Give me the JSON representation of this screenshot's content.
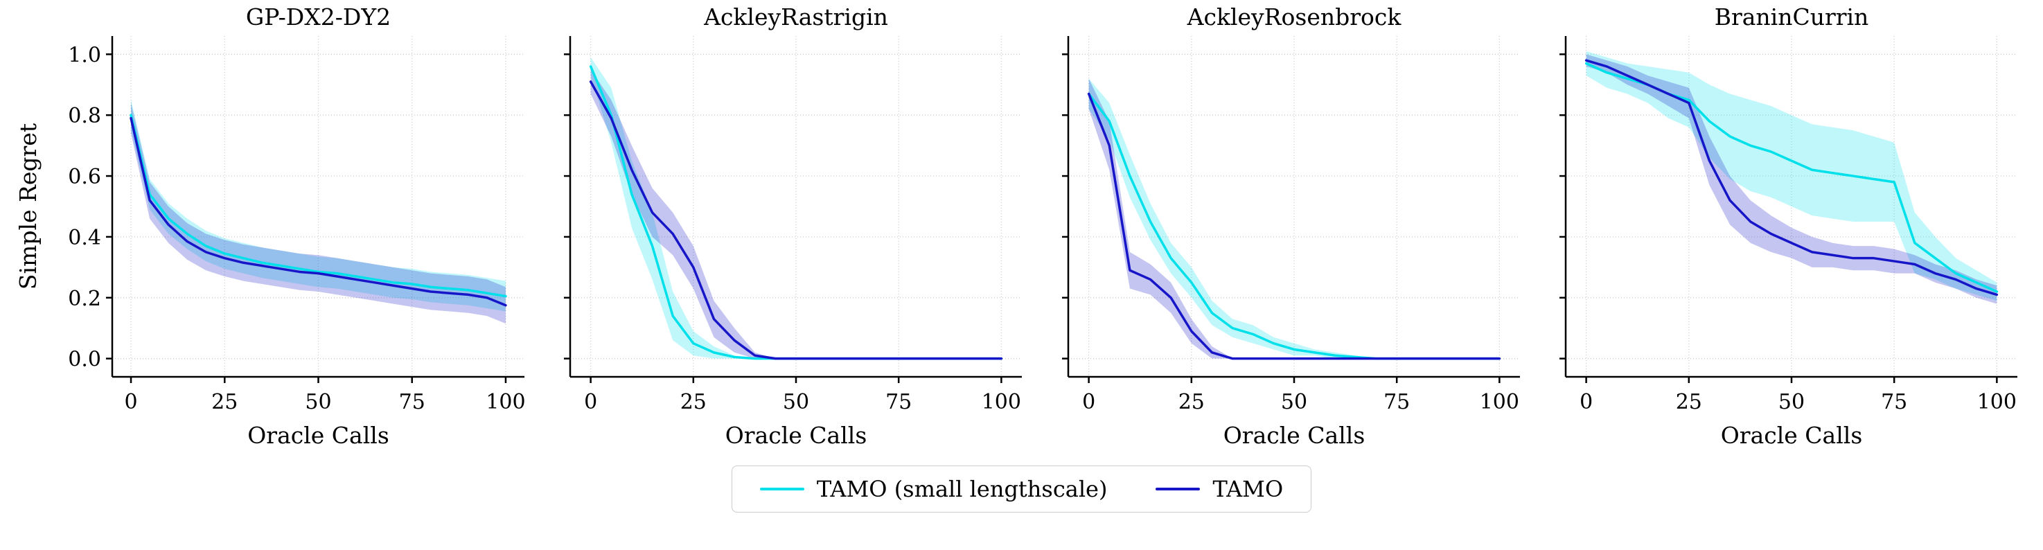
{
  "figure": {
    "legend_items": [
      {
        "label": "TAMO (small lengthscale)",
        "color": "#00E0EA"
      },
      {
        "label": "TAMO",
        "color": "#1616C8"
      }
    ]
  },
  "chart_data": {
    "type": "line",
    "xlabel": "Oracle Calls",
    "ylabel": "Simple Regret",
    "grid": true,
    "legend_position": "bottom-center",
    "x": [
      0,
      5,
      10,
      15,
      20,
      25,
      30,
      35,
      40,
      45,
      50,
      55,
      60,
      65,
      70,
      75,
      80,
      85,
      90,
      95,
      100
    ],
    "xticks": [
      0,
      25,
      50,
      75,
      100
    ],
    "yticks": [
      0.0,
      0.2,
      0.4,
      0.6,
      0.8,
      1.0
    ],
    "xlim": [
      -5,
      105
    ],
    "ylim": [
      -0.06,
      1.06
    ],
    "panels": [
      {
        "title": "GP-DX2-DY2",
        "series": [
          {
            "name": "TAMO (small lengthscale)",
            "color": "#00E0EA",
            "mean": [
              0.8,
              0.54,
              0.46,
              0.41,
              0.37,
              0.345,
              0.33,
              0.315,
              0.305,
              0.295,
              0.285,
              0.28,
              0.27,
              0.26,
              0.25,
              0.245,
              0.235,
              0.23,
              0.225,
              0.215,
              0.205
            ],
            "band": [
              0.05,
              0.05,
              0.05,
              0.05,
              0.05,
              0.05,
              0.05,
              0.05,
              0.05,
              0.05,
              0.05,
              0.05,
              0.05,
              0.05,
              0.05,
              0.05,
              0.05,
              0.05,
              0.05,
              0.05,
              0.05
            ]
          },
          {
            "name": "TAMO",
            "color": "#1616C8",
            "mean": [
              0.79,
              0.52,
              0.44,
              0.385,
              0.35,
              0.33,
              0.315,
              0.305,
              0.295,
              0.285,
              0.28,
              0.27,
              0.26,
              0.25,
              0.24,
              0.23,
              0.22,
              0.215,
              0.21,
              0.2,
              0.175
            ],
            "band": [
              0.05,
              0.06,
              0.06,
              0.06,
              0.06,
              0.06,
              0.06,
              0.06,
              0.06,
              0.06,
              0.06,
              0.06,
              0.06,
              0.06,
              0.06,
              0.06,
              0.06,
              0.06,
              0.06,
              0.06,
              0.06
            ]
          }
        ]
      },
      {
        "title": "AckleyRastrigin",
        "series": [
          {
            "name": "TAMO (small lengthscale)",
            "color": "#00E0EA",
            "mean": [
              0.96,
              0.8,
              0.54,
              0.37,
              0.14,
              0.05,
              0.02,
              0.005,
              0,
              0,
              0,
              0,
              0,
              0,
              0,
              0,
              0,
              0,
              0,
              0,
              0
            ],
            "band": [
              0.03,
              0.09,
              0.11,
              0.11,
              0.08,
              0.04,
              0.02,
              0.005,
              0,
              0,
              0,
              0,
              0,
              0,
              0,
              0,
              0,
              0,
              0,
              0,
              0
            ]
          },
          {
            "name": "TAMO",
            "color": "#1616C8",
            "mean": [
              0.91,
              0.79,
              0.62,
              0.48,
              0.41,
              0.3,
              0.13,
              0.06,
              0.01,
              0,
              0,
              0,
              0,
              0,
              0,
              0,
              0,
              0,
              0,
              0,
              0
            ],
            "band": [
              0.04,
              0.06,
              0.08,
              0.08,
              0.07,
              0.07,
              0.06,
              0.04,
              0.01,
              0,
              0,
              0,
              0,
              0,
              0,
              0,
              0,
              0,
              0,
              0,
              0
            ]
          }
        ]
      },
      {
        "title": "AckleyRosenbrock",
        "series": [
          {
            "name": "TAMO (small lengthscale)",
            "color": "#00E0EA",
            "mean": [
              0.87,
              0.78,
              0.6,
              0.45,
              0.33,
              0.25,
              0.15,
              0.1,
              0.08,
              0.05,
              0.03,
              0.02,
              0.01,
              0.005,
              0,
              0,
              0,
              0,
              0,
              0,
              0
            ],
            "band": [
              0.05,
              0.06,
              0.07,
              0.06,
              0.05,
              0.05,
              0.04,
              0.03,
              0.03,
              0.02,
              0.02,
              0.01,
              0.01,
              0.005,
              0,
              0,
              0,
              0,
              0,
              0,
              0
            ]
          },
          {
            "name": "TAMO",
            "color": "#1616C8",
            "mean": [
              0.87,
              0.7,
              0.29,
              0.26,
              0.2,
              0.09,
              0.02,
              0,
              0,
              0,
              0,
              0,
              0,
              0,
              0,
              0,
              0,
              0,
              0,
              0,
              0
            ],
            "band": [
              0.05,
              0.08,
              0.06,
              0.05,
              0.05,
              0.04,
              0.02,
              0,
              0,
              0,
              0,
              0,
              0,
              0,
              0,
              0,
              0,
              0,
              0,
              0,
              0
            ]
          }
        ]
      },
      {
        "title": "BraninCurrin",
        "series": [
          {
            "name": "TAMO (small lengthscale)",
            "color": "#00E0EA",
            "mean": [
              0.97,
              0.94,
              0.92,
              0.9,
              0.87,
              0.85,
              0.78,
              0.73,
              0.7,
              0.68,
              0.65,
              0.62,
              0.61,
              0.6,
              0.59,
              0.58,
              0.38,
              0.33,
              0.28,
              0.25,
              0.22
            ],
            "band": [
              0.04,
              0.05,
              0.05,
              0.06,
              0.08,
              0.09,
              0.12,
              0.14,
              0.15,
              0.15,
              0.15,
              0.15,
              0.15,
              0.15,
              0.14,
              0.13,
              0.1,
              0.07,
              0.05,
              0.04,
              0.03
            ]
          },
          {
            "name": "TAMO",
            "color": "#1616C8",
            "mean": [
              0.98,
              0.96,
              0.93,
              0.9,
              0.87,
              0.84,
              0.65,
              0.52,
              0.45,
              0.41,
              0.38,
              0.35,
              0.34,
              0.33,
              0.33,
              0.32,
              0.31,
              0.28,
              0.26,
              0.23,
              0.21
            ],
            "band": [
              0.02,
              0.02,
              0.03,
              0.03,
              0.04,
              0.05,
              0.08,
              0.08,
              0.07,
              0.06,
              0.05,
              0.05,
              0.04,
              0.04,
              0.04,
              0.04,
              0.03,
              0.03,
              0.03,
              0.03,
              0.03
            ]
          }
        ]
      }
    ]
  }
}
